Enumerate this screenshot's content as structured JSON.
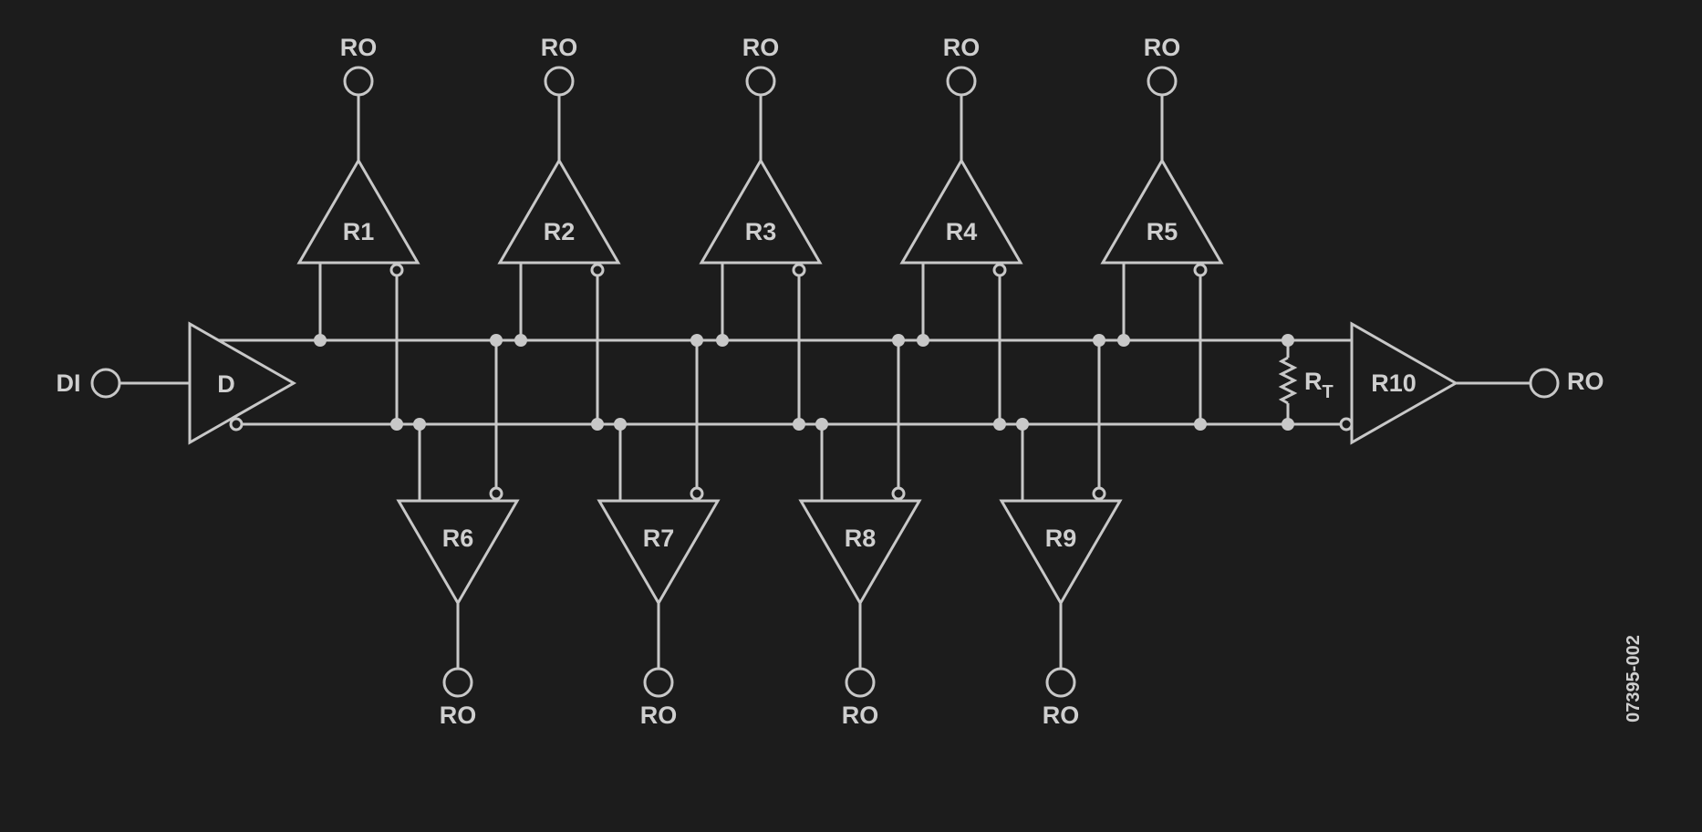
{
  "diagram": {
    "driver": {
      "label": "D",
      "input_label": "DI"
    },
    "top_receivers": [
      {
        "label": "R1",
        "output_label": "RO"
      },
      {
        "label": "R2",
        "output_label": "RO"
      },
      {
        "label": "R3",
        "output_label": "RO"
      },
      {
        "label": "R4",
        "output_label": "RO"
      },
      {
        "label": "R5",
        "output_label": "RO"
      }
    ],
    "bottom_receivers": [
      {
        "label": "R6",
        "output_label": "RO"
      },
      {
        "label": "R7",
        "output_label": "RO"
      },
      {
        "label": "R8",
        "output_label": "RO"
      },
      {
        "label": "R9",
        "output_label": "RO"
      }
    ],
    "terminator": {
      "label": "R",
      "subscript": "T"
    },
    "end_receiver": {
      "label": "R10",
      "output_label": "RO"
    },
    "figure_id": "07395-002",
    "colors": {
      "background": "#1c1c1c",
      "line": "#c8c8c8"
    }
  }
}
